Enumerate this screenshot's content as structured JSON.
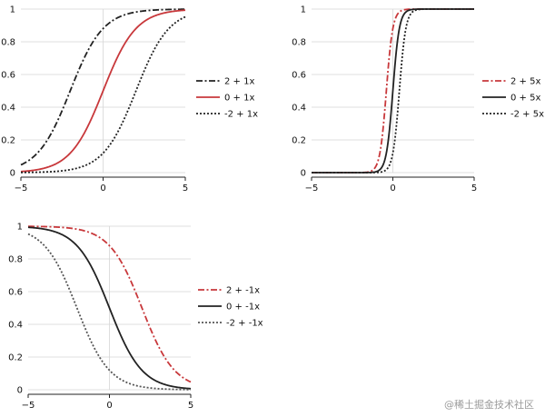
{
  "chart_data": [
    {
      "type": "line",
      "title": "",
      "xlabel": "",
      "ylabel": "",
      "xlim": [
        -5,
        5
      ],
      "ylim": [
        0,
        1
      ],
      "x_ticks": [
        "−5",
        "0",
        "5"
      ],
      "y_ticks": [
        "0",
        "0.2",
        "0.4",
        "0.6",
        "0.8",
        "1"
      ],
      "legend_position": "right",
      "series": [
        {
          "name": "2 + 1x",
          "intercept": 2,
          "slope": 1,
          "color": "#222222",
          "style": "dashdot"
        },
        {
          "name": "0 + 1x",
          "intercept": 0,
          "slope": 1,
          "color": "#c8383b",
          "style": "solid"
        },
        {
          "name": "-2 + 1x",
          "intercept": -2,
          "slope": 1,
          "color": "#222222",
          "style": "dotted"
        }
      ]
    },
    {
      "type": "line",
      "title": "",
      "xlabel": "",
      "ylabel": "",
      "xlim": [
        -5,
        5
      ],
      "ylim": [
        0,
        1
      ],
      "x_ticks": [
        "−5",
        "0",
        "5"
      ],
      "y_ticks": [
        "0",
        "0.2",
        "0.4",
        "0.6",
        "0.8",
        "1"
      ],
      "legend_position": "right",
      "series": [
        {
          "name": "2 + 5x",
          "intercept": 2,
          "slope": 5,
          "color": "#c8383b",
          "style": "dashdot"
        },
        {
          "name": "0 + 5x",
          "intercept": 0,
          "slope": 5,
          "color": "#222222",
          "style": "solid"
        },
        {
          "name": "-2 + 5x",
          "intercept": -2,
          "slope": 5,
          "color": "#222222",
          "style": "dotted"
        }
      ]
    },
    {
      "type": "line",
      "title": "",
      "xlabel": "",
      "ylabel": "",
      "xlim": [
        -5,
        5
      ],
      "ylim": [
        0,
        1
      ],
      "x_ticks": [
        "−5",
        "0",
        "5"
      ],
      "y_ticks": [
        "0",
        "0.2",
        "0.4",
        "0.6",
        "0.8",
        "1"
      ],
      "legend_position": "right",
      "series": [
        {
          "name": "2 + -1x",
          "intercept": 2,
          "slope": -1,
          "color": "#c8383b",
          "style": "dashdot"
        },
        {
          "name": "0 + -1x",
          "intercept": 0,
          "slope": -1,
          "color": "#222222",
          "style": "solid"
        },
        {
          "name": "-2 + -1x",
          "intercept": -2,
          "slope": -1,
          "color": "#555555",
          "style": "dotted"
        }
      ]
    }
  ],
  "watermark": "@稀土掘金技术社区"
}
